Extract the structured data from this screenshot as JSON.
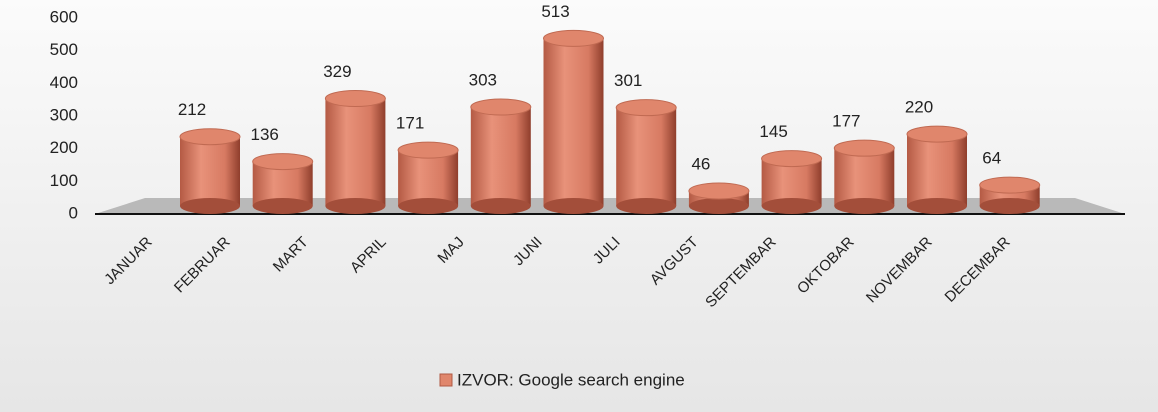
{
  "chart_data": {
    "type": "bar",
    "categories": [
      "JANUAR",
      "FEBRUAR",
      "MART",
      "APRIL",
      "MAJ",
      "JUNI",
      "JULI",
      "AVGUST",
      "SEPTEMBAR",
      "OKTOBAR",
      "NOVEMBAR",
      "DECEMBAR"
    ],
    "series": [
      {
        "name": "IZVOR: Google search engine",
        "color": "#e0866c",
        "values": [
          212,
          136,
          329,
          171,
          303,
          513,
          301,
          46,
          145,
          177,
          220,
          64
        ]
      }
    ],
    "ylim": [
      0,
      600
    ],
    "yticks": [
      0,
      100,
      200,
      300,
      400,
      500,
      600
    ],
    "grid": false,
    "legend": "bottom"
  }
}
